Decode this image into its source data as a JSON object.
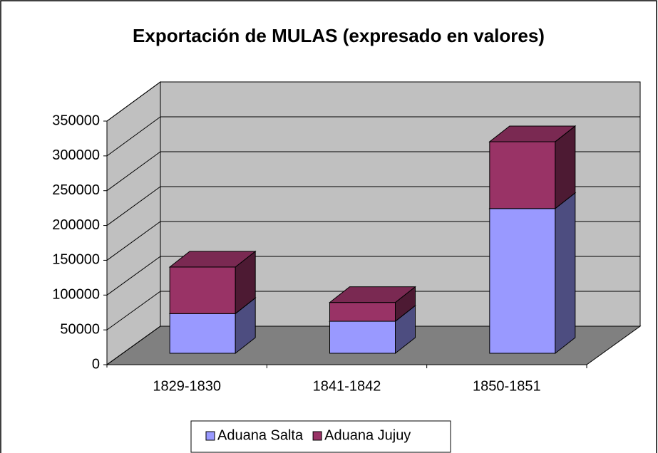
{
  "chart_data": {
    "type": "bar3d-stacked",
    "title": "Exportación de MULAS (expresado en valores)",
    "categories": [
      "1829-1830",
      "1841-1842",
      "1850-1851"
    ],
    "series": [
      {
        "name": "Aduana Salta",
        "color": "#9999ff",
        "values": [
          57000,
          46000,
          208000
        ]
      },
      {
        "name": "Aduana Jujuy",
        "color": "#993366",
        "values": [
          67000,
          27000,
          96000
        ]
      }
    ],
    "ylim": [
      0,
      350000
    ],
    "yticks": [
      0,
      50000,
      100000,
      150000,
      200000,
      250000,
      300000,
      350000
    ],
    "grid": true,
    "legend": "bottom"
  }
}
